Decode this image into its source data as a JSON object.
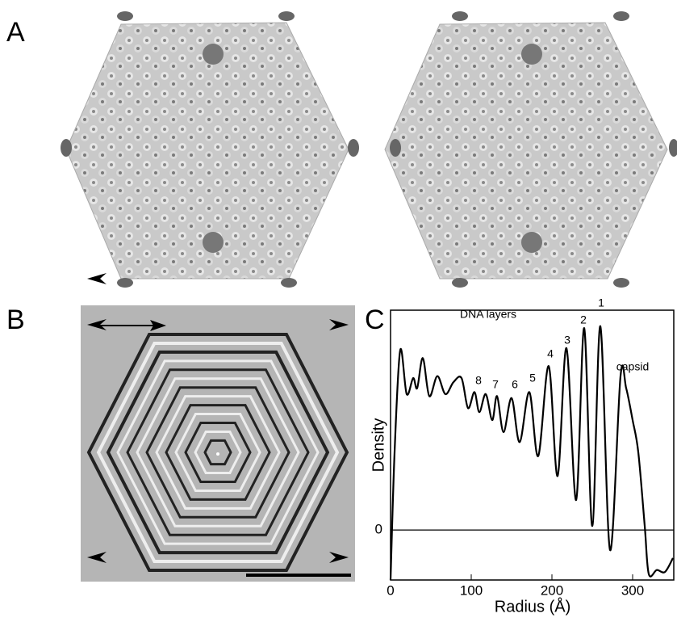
{
  "panels": {
    "a": "A",
    "b": "B",
    "c": "C"
  },
  "chart_data": {
    "type": "line",
    "xlabel": "Radius (Å)",
    "ylabel": "Density",
    "x": [
      0,
      5,
      12,
      20,
      28,
      33,
      40,
      48,
      58,
      68,
      78,
      88,
      96,
      104,
      110,
      118,
      126,
      132,
      140,
      150,
      160,
      172,
      183,
      196,
      207,
      218,
      230,
      240,
      250,
      260,
      272,
      285,
      292,
      300,
      307,
      315,
      320,
      330,
      340,
      350
    ],
    "series": [
      {
        "color": "#000000",
        "values": [
          -0.25,
          0.39,
          0.9,
          0.68,
          0.76,
          0.71,
          0.86,
          0.67,
          0.77,
          0.68,
          0.74,
          0.76,
          0.61,
          0.69,
          0.59,
          0.68,
          0.55,
          0.67,
          0.49,
          0.66,
          0.44,
          0.69,
          0.37,
          0.82,
          0.27,
          0.91,
          0.15,
          1.01,
          0.02,
          1.02,
          -0.1,
          0.77,
          0.71,
          0.55,
          0.39,
          0.02,
          -0.22,
          -0.2,
          -0.21,
          -0.14
        ]
      }
    ],
    "xlim": [
      0,
      351
    ],
    "ylim": [
      -0.25,
      1.1
    ],
    "xticks": [
      0,
      100,
      200,
      300
    ],
    "yticks": [
      0
    ],
    "annotations": [
      "DNA layers",
      "1",
      "2",
      "3",
      "4",
      "5",
      "6",
      "7",
      "8",
      "capsid"
    ]
  }
}
